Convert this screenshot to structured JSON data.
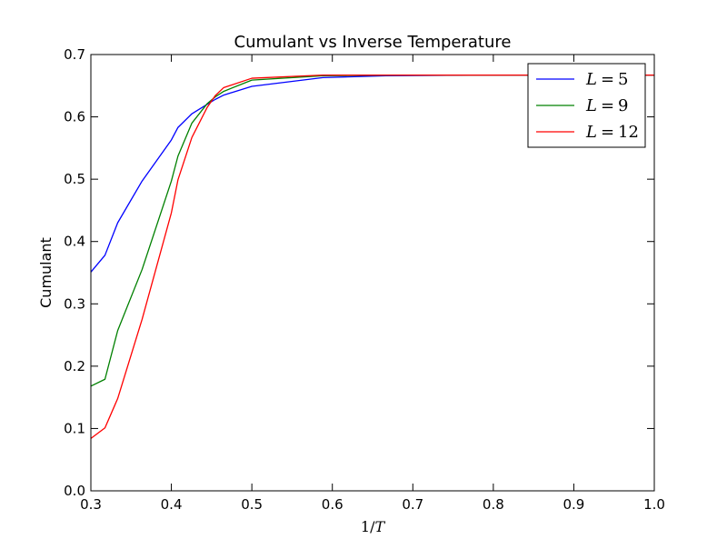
{
  "chart_data": {
    "type": "line",
    "title": "Cumulant vs Inverse Temperature",
    "xlabel": "1/T",
    "ylabel": "Cumulant",
    "xlim": [
      0.3,
      1.0
    ],
    "ylim": [
      0.0,
      0.7
    ],
    "xticks": [
      0.3,
      0.4,
      0.5,
      0.6,
      0.7,
      0.8,
      0.9,
      1.0
    ],
    "yticks": [
      0.0,
      0.1,
      0.2,
      0.3,
      0.4,
      0.5,
      0.6,
      0.7
    ],
    "xtick_labels": [
      "0.3",
      "0.4",
      "0.5",
      "0.6",
      "0.7",
      "0.8",
      "0.9",
      "1.0"
    ],
    "ytick_labels": [
      "0.0",
      "0.1",
      "0.2",
      "0.3",
      "0.4",
      "0.5",
      "0.6",
      "0.7"
    ],
    "grid": false,
    "legend_position": "top-right",
    "x": [
      0.3,
      0.3175,
      0.3333,
      0.3636,
      0.4,
      0.4082,
      0.4255,
      0.4444,
      0.4545,
      0.4651,
      0.5,
      0.5882,
      0.6667,
      0.7692,
      0.8333,
      0.9091,
      1.0
    ],
    "series": [
      {
        "name": "L=5",
        "color": "#0000ff",
        "values": [
          0.351,
          0.378,
          0.43,
          0.497,
          0.563,
          0.583,
          0.605,
          0.62,
          0.628,
          0.635,
          0.649,
          0.663,
          0.666,
          0.667,
          0.667,
          0.667,
          0.667
        ]
      },
      {
        "name": "L=9",
        "color": "#008000",
        "values": [
          0.168,
          0.179,
          0.257,
          0.355,
          0.497,
          0.537,
          0.59,
          0.621,
          0.632,
          0.641,
          0.659,
          0.666,
          0.667,
          0.667,
          0.667,
          0.667,
          0.667
        ]
      },
      {
        "name": "L=12",
        "color": "#ff0000",
        "values": [
          0.084,
          0.101,
          0.148,
          0.275,
          0.446,
          0.499,
          0.567,
          0.615,
          0.634,
          0.647,
          0.662,
          0.667,
          0.667,
          0.667,
          0.667,
          0.667,
          0.667
        ]
      }
    ],
    "legend": {
      "entries": [
        {
          "var": "L",
          "eq": "=",
          "num": "5"
        },
        {
          "var": "L",
          "eq": "=",
          "num": "9"
        },
        {
          "var": "L",
          "eq": "=",
          "num": "12"
        }
      ]
    },
    "xlabel_parts": {
      "num": "1",
      "slash": "/",
      "var": "T"
    }
  }
}
